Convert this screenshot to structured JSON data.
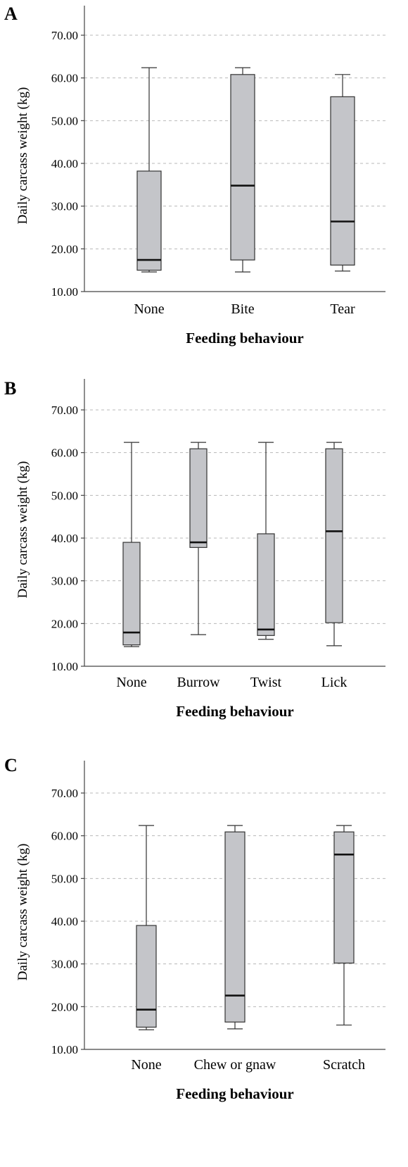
{
  "chart_data": [
    {
      "type": "box",
      "panel": "A",
      "xlabel": "Feeding behaviour",
      "ylabel": "Daily carcass weight (kg)",
      "ylim": [
        10,
        75
      ],
      "yticks": [
        "10.00",
        "20.00",
        "30.00",
        "40.00",
        "50.00",
        "60.00",
        "70.00"
      ],
      "grid": true,
      "categories": [
        "None",
        "Bite",
        "Tear"
      ],
      "boxes": [
        {
          "min": 14.6,
          "q1": 15.0,
          "median": 17.4,
          "q3": 38.2,
          "max": 62.4
        },
        {
          "min": 14.6,
          "q1": 17.4,
          "median": 34.8,
          "q3": 60.8,
          "max": 62.4
        },
        {
          "min": 14.8,
          "q1": 16.2,
          "median": 26.4,
          "q3": 55.6,
          "max": 60.8
        }
      ]
    },
    {
      "type": "box",
      "panel": "B",
      "xlabel": "Feeding behaviour",
      "ylabel": "Daily carcass weight (kg)",
      "ylim": [
        10,
        75
      ],
      "yticks": [
        "10.00",
        "20.00",
        "30.00",
        "40.00",
        "50.00",
        "60.00",
        "70.00"
      ],
      "grid": true,
      "categories": [
        "None",
        "Burrow",
        "Twist",
        "Lick"
      ],
      "boxes": [
        {
          "min": 14.6,
          "q1": 15.0,
          "median": 17.9,
          "q3": 39.0,
          "max": 62.4
        },
        {
          "min": 17.4,
          "q1": 37.8,
          "median": 39.0,
          "q3": 60.9,
          "max": 62.4
        },
        {
          "min": 16.3,
          "q1": 17.2,
          "median": 18.6,
          "q3": 41.0,
          "max": 62.4
        },
        {
          "min": 14.8,
          "q1": 20.2,
          "median": 41.6,
          "q3": 60.9,
          "max": 62.4
        }
      ]
    },
    {
      "type": "box",
      "panel": "C",
      "xlabel": "Feeding behaviour",
      "ylabel": "Daily carcass weight (kg)",
      "ylim": [
        10,
        75
      ],
      "yticks": [
        "10.00",
        "20.00",
        "30.00",
        "40.00",
        "50.00",
        "60.00",
        "70.00"
      ],
      "grid": true,
      "categories": [
        "None",
        "Chew or gnaw",
        "Scratch"
      ],
      "boxes": [
        {
          "min": 14.6,
          "q1": 15.2,
          "median": 19.3,
          "q3": 39.0,
          "max": 62.4
        },
        {
          "min": 14.8,
          "q1": 16.4,
          "median": 22.6,
          "q3": 60.9,
          "max": 62.4
        },
        {
          "min": 15.7,
          "q1": 30.2,
          "median": 55.6,
          "q3": 60.9,
          "max": 62.4
        }
      ]
    }
  ]
}
